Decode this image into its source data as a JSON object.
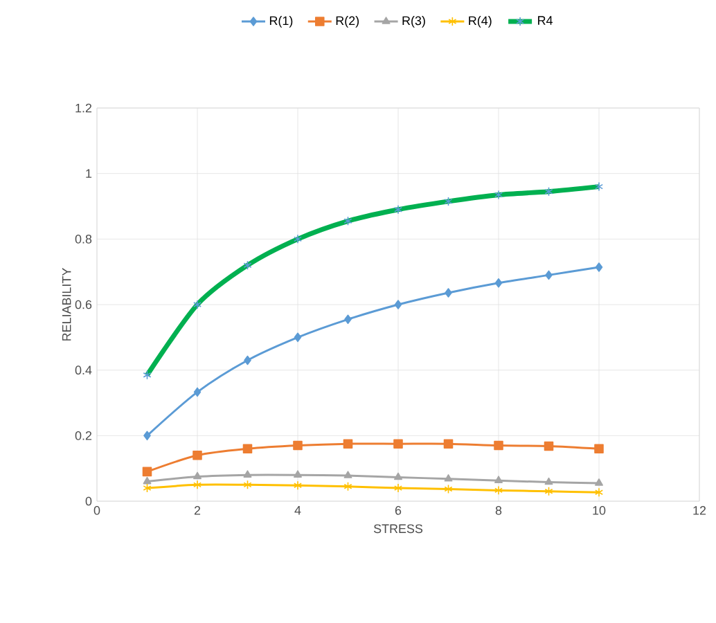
{
  "chart_data": {
    "type": "line",
    "xlabel": "STRESS",
    "ylabel": "RELIABILITY",
    "x": [
      1,
      2,
      3,
      4,
      5,
      6,
      7,
      8,
      9,
      10
    ],
    "xlim": [
      0,
      12
    ],
    "xticks": [
      0,
      2,
      4,
      6,
      8,
      10,
      12
    ],
    "ylim": [
      0,
      1.2
    ],
    "yticks": [
      0,
      0.2,
      0.4,
      0.6,
      0.8,
      1,
      1.2
    ],
    "grid": true,
    "legend": "top",
    "series": [
      {
        "name": "R(1)",
        "color": "#5b9bd5",
        "marker": "diamond",
        "values": [
          0.2,
          0.333,
          0.43,
          0.5,
          0.555,
          0.6,
          0.636,
          0.666,
          0.69,
          0.714
        ]
      },
      {
        "name": "R(2)",
        "color": "#ed7d31",
        "marker": "square",
        "values": [
          0.09,
          0.14,
          0.16,
          0.17,
          0.175,
          0.175,
          0.175,
          0.17,
          0.168,
          0.16
        ]
      },
      {
        "name": "R(3)",
        "color": "#a5a5a5",
        "marker": "triangle",
        "values": [
          0.06,
          0.075,
          0.08,
          0.08,
          0.078,
          0.073,
          0.068,
          0.063,
          0.058,
          0.055
        ]
      },
      {
        "name": "R(4)",
        "color": "#ffc000",
        "marker": "cross",
        "values": [
          0.04,
          0.05,
          0.05,
          0.048,
          0.045,
          0.04,
          0.037,
          0.033,
          0.03,
          0.027
        ]
      },
      {
        "name": "R4",
        "color": "#00b050",
        "marker": "cross",
        "values": [
          0.385,
          0.6,
          0.72,
          0.8,
          0.855,
          0.89,
          0.915,
          0.935,
          0.945,
          0.96
        ]
      }
    ]
  }
}
